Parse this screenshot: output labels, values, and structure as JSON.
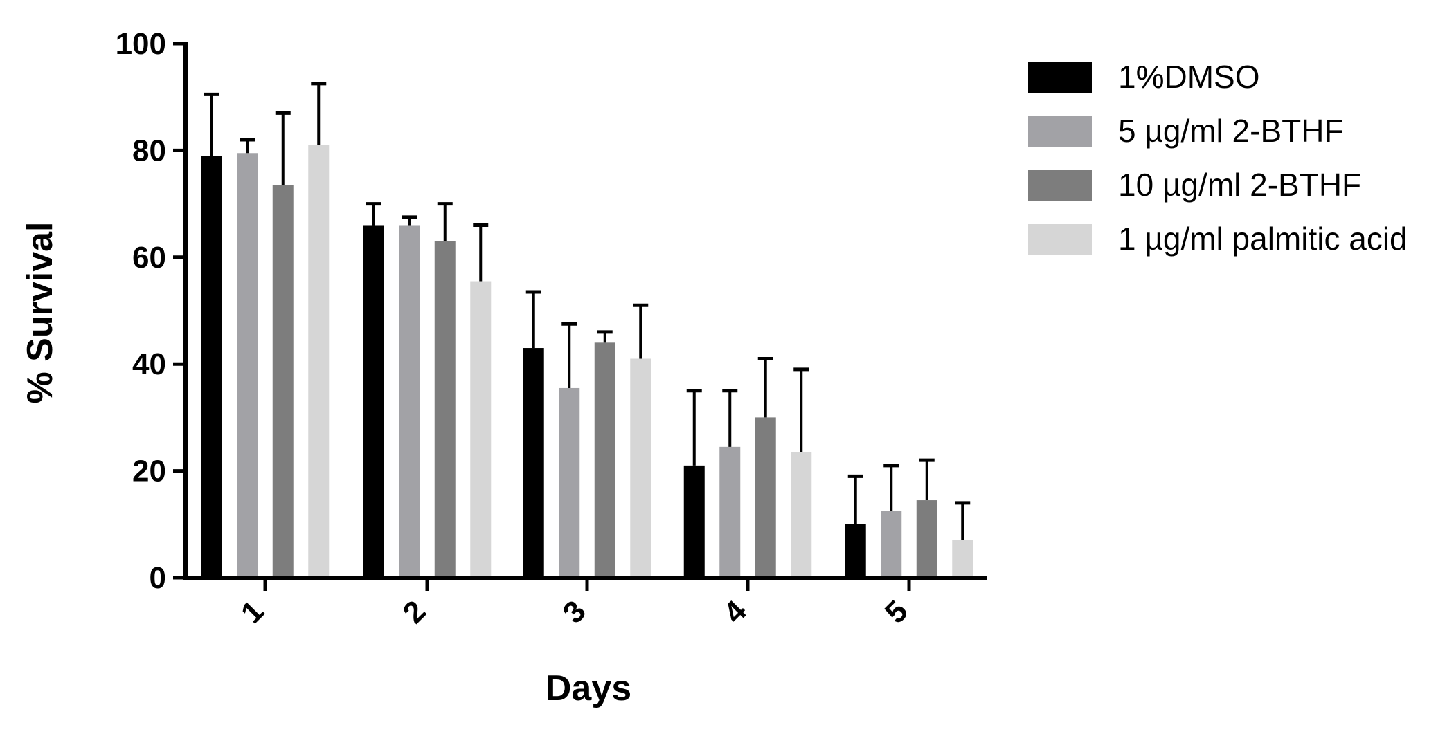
{
  "chart_data": {
    "type": "bar",
    "title": "",
    "xlabel": "Days",
    "ylabel": "% Survival",
    "ylim": [
      0,
      100
    ],
    "yticks": [
      0,
      20,
      40,
      60,
      80,
      100
    ],
    "grid": false,
    "legend_position": "top-right",
    "categories": [
      "1",
      "2",
      "3",
      "4",
      "5"
    ],
    "series": [
      {
        "name": "1%DMSO",
        "color": "#000000",
        "values": [
          79,
          66,
          43,
          21,
          10
        ],
        "errors": [
          11.5,
          4,
          10.5,
          14,
          9
        ]
      },
      {
        "name": "5 µg/ml 2-BTHF",
        "color": "#a2a2a6",
        "values": [
          79.5,
          66,
          35.5,
          24.5,
          12.5
        ],
        "errors": [
          2.5,
          1.5,
          12,
          10.5,
          8.5
        ]
      },
      {
        "name": "10 µg/ml 2-BTHF",
        "color": "#7d7d7d",
        "values": [
          73.5,
          63,
          44,
          30,
          14.5
        ],
        "errors": [
          13.5,
          7,
          2,
          11,
          7.5
        ]
      },
      {
        "name": "1 µg/ml palmitic acid",
        "color": "#d6d6d6",
        "values": [
          81,
          55.5,
          41,
          23.5,
          7
        ],
        "errors": [
          11.5,
          10.5,
          10,
          15.5,
          7
        ]
      }
    ]
  }
}
